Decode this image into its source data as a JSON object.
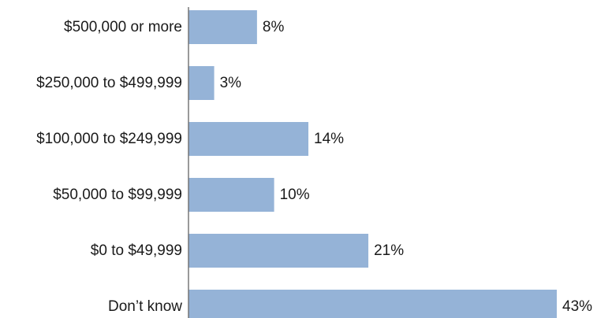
{
  "chart_data": {
    "type": "bar",
    "orientation": "horizontal",
    "categories": [
      "$500,000 or more",
      "$250,000 to $499,999",
      "$100,000 to $249,999",
      "$50,000 to $99,999",
      "$0 to $49,999",
      "Don’t know"
    ],
    "values": [
      8,
      3,
      14,
      10,
      21,
      43
    ],
    "value_labels": [
      "8%",
      "3%",
      "14%",
      "10%",
      "21%",
      "43%"
    ],
    "unit": "%",
    "title": "",
    "xlabel": "",
    "ylabel": "",
    "xlim": [
      0,
      43
    ],
    "grid": false,
    "legend": "none",
    "bar_color": "#95b3d7"
  }
}
